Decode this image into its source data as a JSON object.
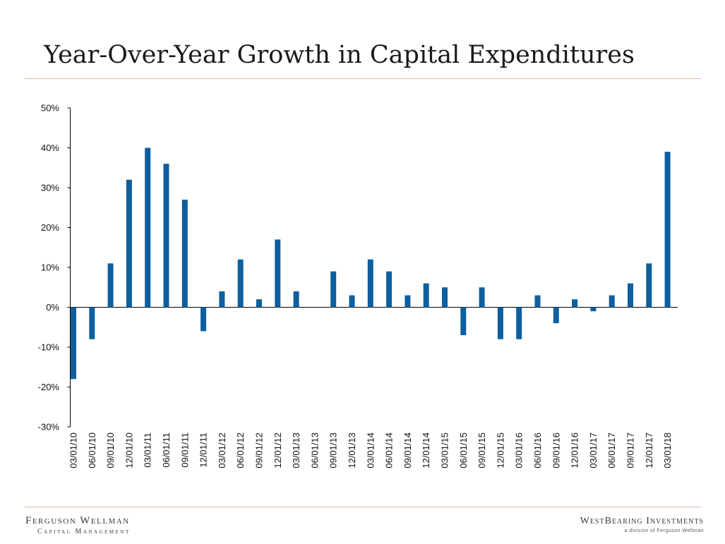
{
  "slide": {
    "title": "Year-Over-Year Growth in Capital Expenditures"
  },
  "footer": {
    "left_line1": "Ferguson Wellman",
    "left_line2": "Capital Management",
    "right_line1": "WestBearing Investments",
    "right_line2": "a division of Ferguson Wellman"
  },
  "colors": {
    "bar": "#0d5f9e",
    "rule": "#d9b9a6",
    "axis": "#000000"
  },
  "chart_data": {
    "type": "bar",
    "title": "Year-Over-Year Growth in Capital Expenditures",
    "xlabel": "",
    "ylabel": "",
    "ylim": [
      -30,
      50
    ],
    "y_ticks": [
      50,
      40,
      30,
      20,
      10,
      0,
      -10,
      -20,
      -30
    ],
    "y_tick_labels": [
      "50%",
      "40%",
      "30%",
      "20%",
      "10%",
      "0%",
      "-10%",
      "-20%",
      "-30%"
    ],
    "grid": false,
    "legend": "none",
    "categories": [
      "03/01/10",
      "06/01/10",
      "09/01/10",
      "12/01/10",
      "03/01/11",
      "06/01/11",
      "09/01/11",
      "12/01/11",
      "03/01/12",
      "06/01/12",
      "09/01/12",
      "12/01/12",
      "03/01/13",
      "06/01/13",
      "09/01/13",
      "12/01/13",
      "03/01/14",
      "06/01/14",
      "09/01/14",
      "12/01/14",
      "03/01/15",
      "06/01/15",
      "09/01/15",
      "12/01/15",
      "03/01/16",
      "06/01/16",
      "09/01/16",
      "12/01/16",
      "03/01/17",
      "06/01/17",
      "09/01/17",
      "12/01/17",
      "03/01/18"
    ],
    "values": [
      -18,
      -8,
      11,
      32,
      40,
      36,
      27,
      -6,
      4,
      12,
      2,
      17,
      4,
      0,
      9,
      3,
      12,
      9,
      3,
      6,
      5,
      -7,
      5,
      -8,
      -8,
      3,
      -4,
      2,
      -1,
      3,
      6,
      11,
      39
    ]
  }
}
